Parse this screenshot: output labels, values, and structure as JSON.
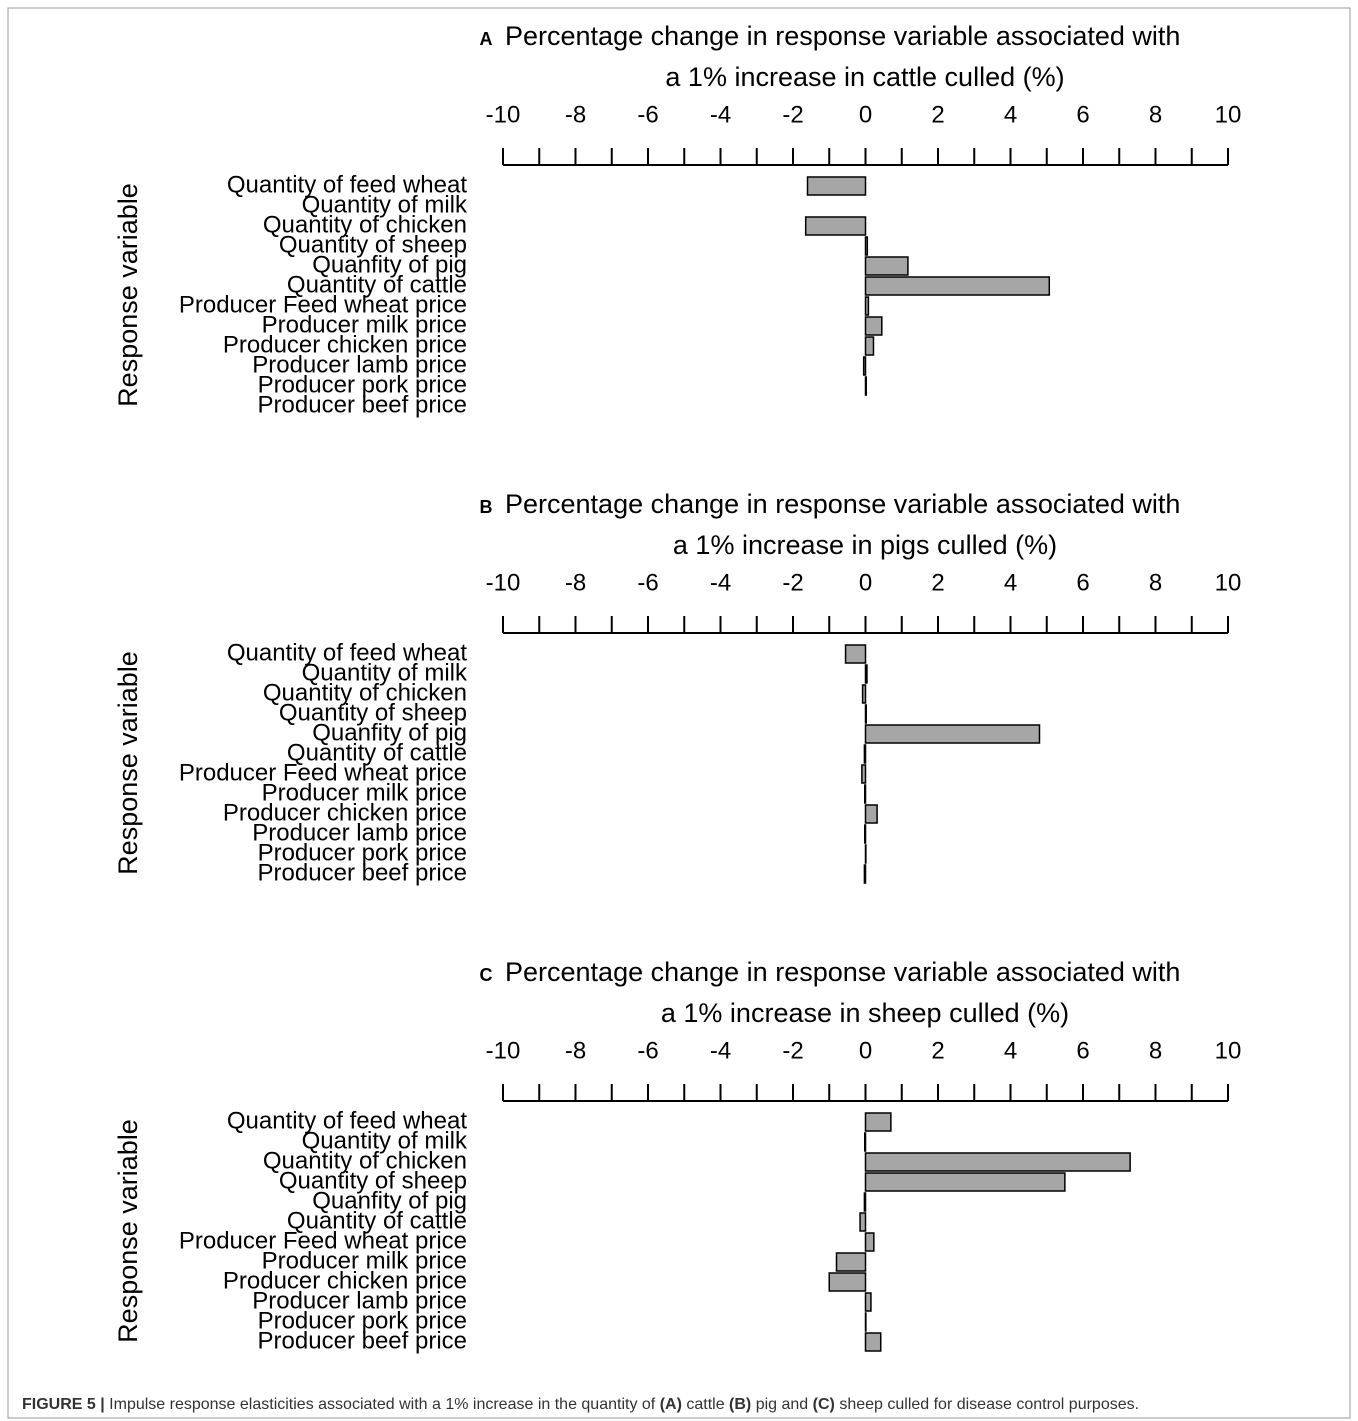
{
  "chart_data": [
    {
      "type": "hbar",
      "panel_label": "A",
      "title": [
        "Percentage change in response variable associated with",
        "a 1% increase in cattle culled (%)"
      ],
      "ylabel": "Response variable",
      "categories": [
        "Quantity of feed wheat",
        "Quantity of milk",
        "Quantity of chicken",
        "Quantity of sheep",
        "Quanfity of pig",
        "Quantity of cattle",
        "Producer Feed wheat price",
        "Producer milk price",
        "Producer chicken price",
        "Producer lamb price",
        "Producer pork price",
        "Producer beef price"
      ],
      "values": [
        -1.6,
        0.0,
        -1.65,
        0.05,
        1.17,
        5.07,
        0.08,
        0.45,
        0.22,
        -0.05,
        0.02,
        0.0
      ],
      "color": "#a6a6a6",
      "xlim": [
        -10,
        10
      ],
      "xticks": [
        -10,
        -8,
        -6,
        -4,
        -2,
        0,
        2,
        4,
        6,
        8,
        10
      ],
      "minor_xticks": [
        -9,
        -7,
        -5,
        -3,
        -1,
        1,
        3,
        5,
        7,
        9
      ]
    },
    {
      "type": "hbar",
      "panel_label": "B",
      "title": [
        "Percentage change in response variable associated with",
        "a 1% increase in pigs culled (%)"
      ],
      "ylabel": "Response variable",
      "categories": [
        "Quantity of feed wheat",
        "Quantity of milk",
        "Quantity of chicken",
        "Quantity of sheep",
        "Quanfity of pig",
        "Quantity of cattle",
        "Producer Feed wheat price",
        "Producer milk price",
        "Producer chicken price",
        "Producer lamb price",
        "Producer pork price",
        "Producer beef price"
      ],
      "values": [
        -0.55,
        0.04,
        -0.08,
        0.02,
        4.8,
        -0.03,
        -0.1,
        -0.02,
        0.32,
        -0.02,
        0.01,
        -0.03
      ],
      "color": "#a6a6a6",
      "xlim": [
        -10,
        10
      ],
      "xticks": [
        -10,
        -8,
        -6,
        -4,
        -2,
        0,
        2,
        4,
        6,
        8,
        10
      ],
      "minor_xticks": [
        -9,
        -7,
        -5,
        -3,
        -1,
        1,
        3,
        5,
        7,
        9
      ]
    },
    {
      "type": "hbar",
      "panel_label": "C",
      "title": [
        "Percentage change in response variable associated with",
        "a 1% increase in sheep culled (%)"
      ],
      "ylabel": "Response variable",
      "categories": [
        "Quantity of feed wheat",
        "Quantity of milk",
        "Quantity of chicken",
        "Quantity of sheep",
        "Quanfity of pig",
        "Quantity of cattle",
        "Producer Feed wheat price",
        "Producer milk price",
        "Producer chicken price",
        "Producer lamb price",
        "Producer pork price",
        "Producer beef price"
      ],
      "values": [
        0.7,
        -0.02,
        7.3,
        5.5,
        -0.03,
        -0.15,
        0.23,
        -0.8,
        -1.0,
        0.15,
        0.01,
        0.42
      ],
      "color": "#a6a6a6",
      "xlim": [
        -10,
        10
      ],
      "xticks": [
        -10,
        -8,
        -6,
        -4,
        -2,
        0,
        2,
        4,
        6,
        8,
        10
      ],
      "minor_xticks": [
        -9,
        -7,
        -5,
        -3,
        -1,
        1,
        3,
        5,
        7,
        9
      ]
    }
  ],
  "caption": [
    {
      "text": "FIGURE 5 |",
      "bold": true
    },
    {
      "text": " Impulse response elasticities associated with a 1% increase in the quantity of "
    },
    {
      "text": "(A)",
      "bold": true
    },
    {
      "text": " cattle "
    },
    {
      "text": "(B)",
      "bold": true
    },
    {
      "text": " pig and "
    },
    {
      "text": "(C)",
      "bold": true
    },
    {
      "text": " sheep culled for disease control purposes."
    }
  ]
}
